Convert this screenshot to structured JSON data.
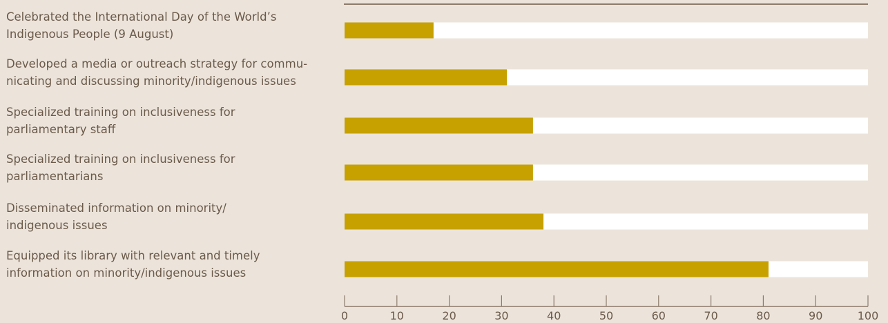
{
  "chart_data": {
    "type": "bar",
    "orientation": "horizontal",
    "categories": [
      [
        "Celebrated the International Day of the World’s",
        "Indigenous People (9 August)"
      ],
      [
        "Developed a media or outreach strategy for commu-",
        "nicating and discussing minority/indigenous issues"
      ],
      [
        "Specialized training on inclusiveness for",
        "parliamentary staff"
      ],
      [
        "Specialized training on inclusiveness for",
        "parliamentarians"
      ],
      [
        "Disseminated information on minority/",
        "indigenous issues"
      ],
      [
        "Equipped its library with relevant and timely",
        "information on minority/indigenous issues"
      ]
    ],
    "values": [
      17,
      31,
      36,
      36,
      38,
      81
    ],
    "xlim": [
      0,
      100
    ],
    "xticks": [
      "0",
      "10",
      "20",
      "30",
      "40",
      "50",
      "60",
      "70",
      "80",
      "90",
      "100"
    ],
    "grid": false,
    "colors": {
      "bar": "#c6a100",
      "track": "#ffffff",
      "axis": "#8c7a6b",
      "text": "#6b5a4a",
      "background": "#ece4db"
    }
  }
}
